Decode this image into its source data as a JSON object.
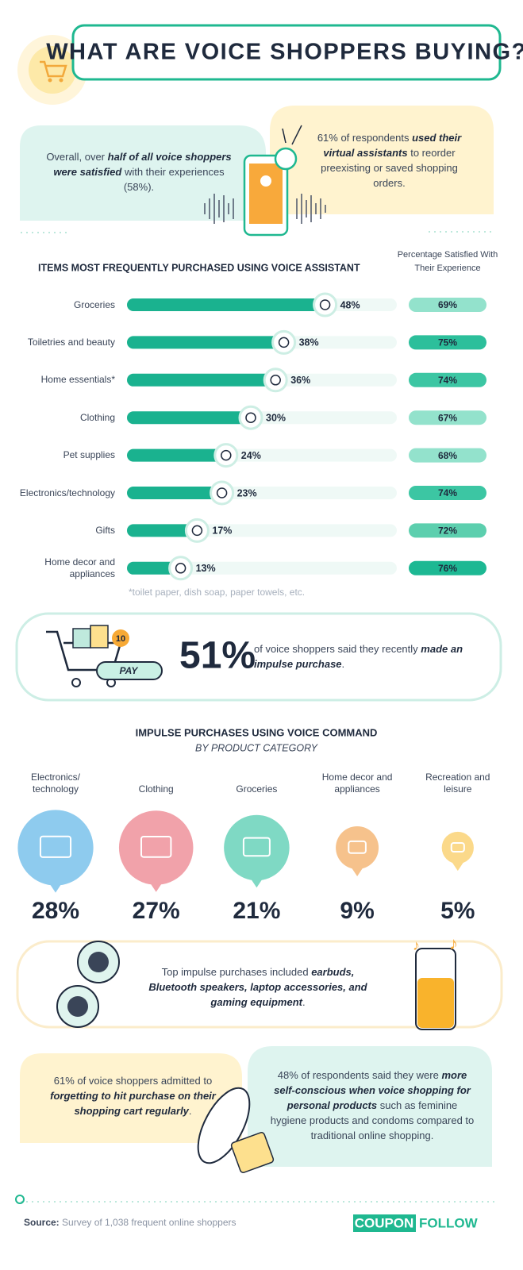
{
  "title": "WHAT ARE VOICE SHOPPERS BUYING?",
  "intro": {
    "left": [
      "Overall, over ",
      "half of all voice shoppers were satisfied",
      " with their experiences (58%)."
    ],
    "right": [
      "61% of respondents ",
      "used their virtual assistants",
      " to reorder preexisting or saved shopping orders."
    ]
  },
  "chart_data": [
    {
      "type": "bar",
      "title": "ITEMS MOST FREQUENTLY PURCHASED USING VOICE ASSISTANT",
      "categories": [
        "Groceries",
        "Toiletries and beauty",
        "Home essentials*",
        "Clothing",
        "Pet supplies",
        "Electronics/technology",
        "Gifts",
        "Home decor and appliances"
      ],
      "values": [
        48,
        38,
        36,
        30,
        24,
        23,
        17,
        13
      ],
      "value_labels": [
        "48%",
        "38%",
        "36%",
        "30%",
        "24%",
        "23%",
        "17%",
        "13%"
      ],
      "color": "#1ab28f",
      "satisfied": {
        "label": "Percentage Satisfied With Their Experience",
        "values": [
          69,
          75,
          74,
          67,
          68,
          74,
          72,
          76
        ],
        "value_labels": [
          "69%",
          "75%",
          "74%",
          "67%",
          "68%",
          "74%",
          "72%",
          "76%"
        ],
        "colors": [
          "#93e2cc",
          "#2cbf9b",
          "#3cc6a3",
          "#93e2cc",
          "#93e2cc",
          "#3cc6a3",
          "#5ccfae",
          "#1db893"
        ]
      },
      "note": "*toilet paper, dish soap, paper towels, etc."
    },
    {
      "type": "bubble",
      "title": "IMPULSE PURCHASES USING VOICE COMMAND",
      "subtitle": "BY PRODUCT CATEGORY",
      "categories": [
        "Electronics/ technology",
        "Clothing",
        "Groceries",
        "Home decor and appliances",
        "Recreation and leisure"
      ],
      "values": [
        28,
        27,
        21,
        9,
        5
      ],
      "value_labels": [
        "28%",
        "27%",
        "21%",
        "9%",
        "5%"
      ],
      "colors": [
        "#8ecbee",
        "#f1a2aa",
        "#7fd9c4",
        "#f6c28c",
        "#fbd98a"
      ]
    }
  ],
  "impulse_stat": {
    "figure": "51%",
    "text": [
      "of voice shoppers said they recently ",
      "made an impulse purchase",
      "."
    ],
    "badge": "10",
    "button": "PAY"
  },
  "top_purchases": [
    "Top impulse purchases included ",
    "earbuds, Bluetooth speakers, laptop accessories, and gaming equipment",
    "."
  ],
  "bottom_left": [
    "61% of voice shoppers admitted to ",
    "forgetting to hit purchase on their shopping cart regularly",
    "."
  ],
  "bottom_right": [
    "48% of respondents said they were ",
    "more self-conscious when voice shopping for personal products",
    " such as feminine hygiene products and condoms compared to traditional online shopping."
  ],
  "footer": {
    "source_label": "Source:",
    "source": " Survey of 1,038 frequent online shoppers",
    "logo": [
      "COUPON",
      "FOLLOW"
    ]
  }
}
